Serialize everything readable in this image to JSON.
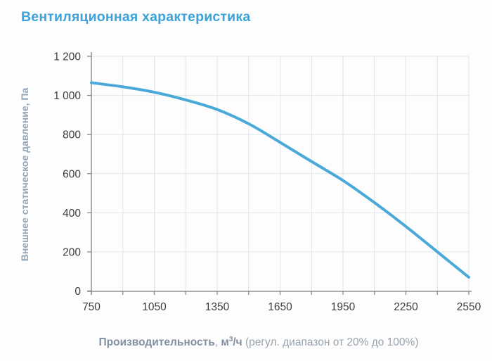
{
  "title": "Вентиляционная характеристика",
  "colors": {
    "title": "#3ba3da",
    "curve": "#4ba9d9",
    "grid": "#dfe5ea",
    "axis": "#808080",
    "tick": "#808080",
    "tick_text": "#3d3d3d",
    "x_title_bold": "#8290a0",
    "x_title_regular": "#98a3ae",
    "y_title": "#90a5b8",
    "background": "#fdfdfd"
  },
  "y_axis": {
    "title": "Внешнее статическое давление, Па",
    "tick_labels": [
      "0",
      "200",
      "400",
      "600",
      "800",
      "1 000",
      "1 200"
    ],
    "tick_values": [
      0,
      200,
      400,
      600,
      800,
      1000,
      1200
    ]
  },
  "x_axis": {
    "title_bold_1": "Производительность",
    "title_regular_1": ", ",
    "title_bold_2": "м",
    "title_sup": "3",
    "title_bold_3": "/ч",
    "title_regular_2": " (регул. диапазон от 20% до 100%)",
    "tick_labels": [
      "750",
      "1050",
      "1350",
      "1650",
      "1950",
      "2250",
      "2550"
    ],
    "tick_values": [
      750,
      1050,
      1350,
      1650,
      1950,
      2250,
      2550
    ]
  },
  "chart_data": {
    "type": "line",
    "title": "Вентиляционная характеристика",
    "xlabel": "Производительность, м3/ч (регул. диапазон от 20% до 100%)",
    "ylabel": "Внешнее статическое давление, Па",
    "xlim": [
      750,
      2550
    ],
    "ylim": [
      0,
      1200
    ],
    "x_ticks": [
      750,
      1050,
      1350,
      1650,
      1950,
      2250,
      2550
    ],
    "x_minor_step": 150,
    "y_ticks": [
      0,
      200,
      400,
      600,
      800,
      1000,
      1200
    ],
    "grid": true,
    "legend": false,
    "series": [
      {
        "name": "fan-curve",
        "x": [
          750,
          900,
          1050,
          1200,
          1350,
          1500,
          1650,
          1800,
          1950,
          2100,
          2250,
          2400,
          2550
        ],
        "y": [
          1065,
          1044,
          1016,
          977,
          928,
          855,
          760,
          662,
          565,
          452,
          330,
          200,
          70
        ]
      }
    ]
  }
}
